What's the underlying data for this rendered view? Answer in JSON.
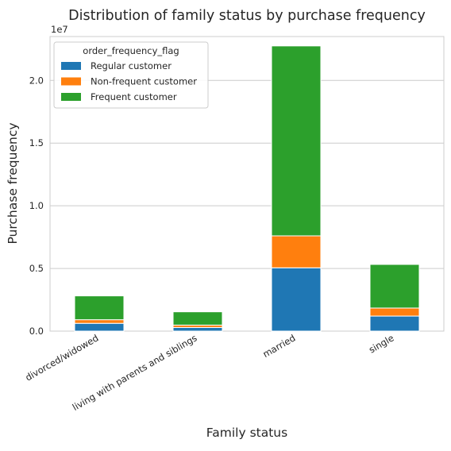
{
  "chart_data": {
    "type": "bar",
    "stacked": true,
    "title": "Distribution of family status by purchase frequency",
    "xlabel": "Family status",
    "ylabel": "Purchase frequency",
    "y_offset_label": "1e7",
    "ylim": [
      0,
      23500000
    ],
    "y_ticks": [
      0,
      5000000,
      10000000,
      15000000,
      20000000
    ],
    "y_tick_labels": [
      "0.0",
      "0.5",
      "1.0",
      "1.5",
      "2.0"
    ],
    "grid": true,
    "legend_position": "top-left",
    "legend_title": "order_frequency_flag",
    "categories": [
      "divorced/widowed",
      "living with parents and siblings",
      "married",
      "single"
    ],
    "series": [
      {
        "name": "Regular customer",
        "color": "#1f77b4",
        "values": [
          620000,
          290000,
          5050000,
          1200000
        ]
      },
      {
        "name": "Non-frequent customer",
        "color": "#ff7f0e",
        "values": [
          290000,
          190000,
          2550000,
          640000
        ]
      },
      {
        "name": "Frequent customer",
        "color": "#2ca02c",
        "values": [
          1900000,
          1060000,
          15150000,
          3480000
        ]
      }
    ]
  }
}
